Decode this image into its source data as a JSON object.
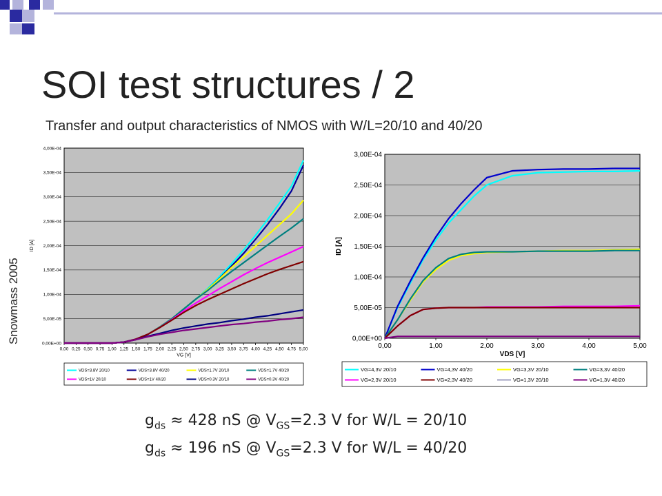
{
  "slide": {
    "title": "SOI test structures / 2",
    "subtitle": "Transfer and output characteristics  of NMOS with W/L=20/10 and  40/20",
    "side_label": "Snowmass 2005",
    "formulas": [
      {
        "g": "g",
        "g_sub": "ds",
        "approx": "≈",
        "value": " 428 nS @ V",
        "v_sub": "GS",
        "rest": "=2.3 V for W/L = 20/10"
      },
      {
        "g": "g",
        "g_sub": "ds",
        "approx": "≈",
        "value": " 196 nS @ V",
        "v_sub": "GS",
        "rest": "=2.3 V for W/L = 40/20"
      }
    ],
    "colors": {
      "accent_blue": "#2a2aa0",
      "accent_light": "#b4b4dc",
      "plot_bg": "#c0c0c0"
    }
  },
  "chart_data": [
    {
      "type": "line",
      "title": "",
      "xlabel": "VG  [V]",
      "ylabel": "ID [A]",
      "xlim": [
        0,
        5
      ],
      "ylim": [
        0,
        0.0004
      ],
      "x_ticks": [
        "0,00",
        "0,25",
        "0,50",
        "0,75",
        "1,00",
        "1,25",
        "1,50",
        "1,75",
        "2,00",
        "2,25",
        "2,50",
        "2,75",
        "3,00",
        "3,25",
        "3,50",
        "3,75",
        "4,00",
        "4,25",
        "4,50",
        "4,75",
        "5,00"
      ],
      "x_tick_values": [
        0,
        0.25,
        0.5,
        0.75,
        1,
        1.25,
        1.5,
        1.75,
        2,
        2.25,
        2.5,
        2.75,
        3,
        3.25,
        3.5,
        3.75,
        4,
        4.25,
        4.5,
        4.75,
        5
      ],
      "y_ticks": [
        "0,00E+00",
        "5,00E-05",
        "1,00E-04",
        "1,50E-04",
        "2,00E-04",
        "2,50E-04",
        "3,00E-04",
        "3,50E-04",
        "4,00E-04"
      ],
      "y_tick_values": [
        0,
        5e-05,
        0.0001,
        0.00015,
        0.0002,
        0.00025,
        0.0003,
        0.00035,
        0.0004
      ],
      "grid": true,
      "legend": "bottom",
      "x": [
        0,
        0.5,
        1,
        1.25,
        1.5,
        1.75,
        2,
        2.25,
        2.5,
        2.75,
        3,
        3.25,
        3.5,
        3.75,
        4,
        4.25,
        4.5,
        4.75,
        5
      ],
      "series": [
        {
          "name": "VDS=3.8V 20/10",
          "color": "#00ffff",
          "values": [
            0,
            0,
            0,
            2e-06,
            8e-06,
            1.8e-05,
            3.3e-05,
            5e-05,
            7e-05,
            9e-05,
            0.000112,
            0.000137,
            0.000163,
            0.000191,
            0.000221,
            0.000253,
            0.000287,
            0.000322,
            0.000375
          ]
        },
        {
          "name": "VDS=3.8V 40/20",
          "color": "#000099",
          "values": [
            0,
            0,
            0,
            2e-06,
            8e-06,
            1.8e-05,
            3.3e-05,
            5e-05,
            7e-05,
            9e-05,
            0.00011,
            0.000133,
            0.000158,
            0.000184,
            0.000213,
            0.000243,
            0.000276,
            0.000312,
            0.000365
          ]
        },
        {
          "name": "VDS=1.7V 20/10",
          "color": "#ffff00",
          "values": [
            0,
            0,
            0,
            2e-06,
            8e-06,
            1.8e-05,
            3.3e-05,
            5e-05,
            7e-05,
            9e-05,
            0.00011,
            0.000132,
            0.000155,
            0.000177,
            0.000199,
            0.000221,
            0.000243,
            0.000265,
            0.000293
          ]
        },
        {
          "name": "VDS=1.7V 40/20",
          "color": "#008080",
          "values": [
            0,
            0,
            0,
            2e-06,
            8e-06,
            1.8e-05,
            3.3e-05,
            5e-05,
            7e-05,
            9e-05,
            0.000108,
            0.000128,
            0.000147,
            0.000165,
            0.000183,
            0.000201,
            0.000219,
            0.000236,
            0.000255
          ]
        },
        {
          "name": "VDS=1V 20/10",
          "color": "#ff00ff",
          "values": [
            0,
            0,
            0,
            2e-06,
            8e-06,
            1.8e-05,
            3.2e-05,
            4.8e-05,
            6.6e-05,
            8.2e-05,
            9.7e-05,
            0.000112,
            0.000126,
            0.00014,
            0.000153,
            0.000165,
            0.000176,
            0.000187,
            0.000198
          ]
        },
        {
          "name": "VDS=1V 40/20",
          "color": "#800000",
          "values": [
            0,
            0,
            0,
            2e-06,
            8e-06,
            1.8e-05,
            3.2e-05,
            4.7e-05,
            6.3e-05,
            7.7e-05,
            8.9e-05,
            0.0001,
            0.000111,
            0.000122,
            0.000132,
            0.000142,
            0.000151,
            0.000159,
            0.000167
          ]
        },
        {
          "name": "VDS=0.3V 20/10",
          "color": "#000080",
          "values": [
            0,
            0,
            0,
            2e-06,
            7e-06,
            1.4e-05,
            2e-05,
            2.6e-05,
            3.1e-05,
            3.5e-05,
            3.9e-05,
            4.2e-05,
            4.6e-05,
            4.9e-05,
            5.3e-05,
            5.6e-05,
            6e-05,
            6.4e-05,
            6.8e-05
          ]
        },
        {
          "name": "VDS=0.3V 40/20",
          "color": "#800080",
          "values": [
            0,
            0,
            0,
            2e-06,
            7e-06,
            1.3e-05,
            1.8e-05,
            2.2e-05,
            2.6e-05,
            2.9e-05,
            3.2e-05,
            3.5e-05,
            3.8e-05,
            4e-05,
            4.3e-05,
            4.5e-05,
            4.8e-05,
            5e-05,
            5.3e-05
          ]
        }
      ]
    },
    {
      "type": "line",
      "title": "",
      "xlabel": "VDS  [V]",
      "ylabel": "ID  [A]",
      "xlim": [
        0,
        5
      ],
      "ylim": [
        0,
        0.0003
      ],
      "x_ticks": [
        "0,00",
        "1,00",
        "2,00",
        "3,00",
        "4,00",
        "5,00"
      ],
      "x_tick_values": [
        0,
        1,
        2,
        3,
        4,
        5
      ],
      "y_ticks": [
        "0,00E+00",
        "5,00E-05",
        "1,00E-04",
        "1,50E-04",
        "2,00E-04",
        "2,50E-04",
        "3,00E-04"
      ],
      "y_tick_values": [
        0,
        5e-05,
        0.0001,
        0.00015,
        0.0002,
        0.00025,
        0.0003
      ],
      "grid": true,
      "legend": "bottom",
      "x": [
        0,
        0.25,
        0.5,
        0.75,
        1,
        1.25,
        1.5,
        1.75,
        2,
        2.5,
        3,
        3.5,
        4,
        4.5,
        5
      ],
      "series": [
        {
          "name": "VG=4,3V 20/10",
          "color": "#00ffff",
          "values": [
            0,
            5e-05,
            9e-05,
            0.000128,
            0.00016,
            0.000188,
            0.00021,
            0.000232,
            0.00025,
            0.000265,
            0.00027,
            0.000271,
            0.000272,
            0.000272,
            0.000273
          ]
        },
        {
          "name": "VG=4,3V 40/20",
          "color": "#0000cc",
          "values": [
            0,
            5.2e-05,
            9.3e-05,
            0.000131,
            0.000165,
            0.000195,
            0.00022,
            0.000242,
            0.000262,
            0.000273,
            0.000275,
            0.000276,
            0.000276,
            0.000277,
            0.000277
          ]
        },
        {
          "name": "VG=3,3V 20/10",
          "color": "#ffff00",
          "values": [
            0,
            3e-05,
            6.2e-05,
            9.2e-05,
            0.000112,
            0.000127,
            0.000135,
            0.000138,
            0.00014,
            0.000141,
            0.000142,
            0.000143,
            0.000143,
            0.000144,
            0.000145
          ]
        },
        {
          "name": "VG=3,3V 40/20",
          "color": "#008080",
          "values": [
            0,
            3e-05,
            6.4e-05,
            9.4e-05,
            0.000115,
            0.00013,
            0.000137,
            0.00014,
            0.000141,
            0.000141,
            0.000142,
            0.000142,
            0.000142,
            0.000143,
            0.000143
          ]
        },
        {
          "name": "VG=2,3V 20/10",
          "color": "#ff00ff",
          "values": [
            0,
            2e-05,
            3.7e-05,
            4.7e-05,
            4.9e-05,
            5e-05,
            5e-05,
            5e-05,
            5.1e-05,
            5.1e-05,
            5.1e-05,
            5.2e-05,
            5.2e-05,
            5.2e-05,
            5.3e-05
          ]
        },
        {
          "name": "VG=2,3V 40/20",
          "color": "#800000",
          "values": [
            0,
            2e-05,
            3.7e-05,
            4.7e-05,
            4.9e-05,
            5e-05,
            5e-05,
            5e-05,
            5e-05,
            5e-05,
            5e-05,
            5e-05,
            5e-05,
            5e-05,
            5e-05
          ]
        },
        {
          "name": "VG=1,3V 20/10",
          "color": "#a0a0c0",
          "values": [
            0,
            3e-06,
            3e-06,
            3e-06,
            3e-06,
            3e-06,
            3e-06,
            3e-06,
            3e-06,
            3e-06,
            3e-06,
            3e-06,
            3e-06,
            3e-06,
            3e-06
          ]
        },
        {
          "name": "VG=1,3V 40/20",
          "color": "#800080",
          "values": [
            0,
            3e-06,
            3e-06,
            3e-06,
            3e-06,
            3e-06,
            3e-06,
            3e-06,
            3e-06,
            3e-06,
            3e-06,
            3e-06,
            3e-06,
            3e-06,
            3e-06
          ]
        }
      ]
    }
  ]
}
